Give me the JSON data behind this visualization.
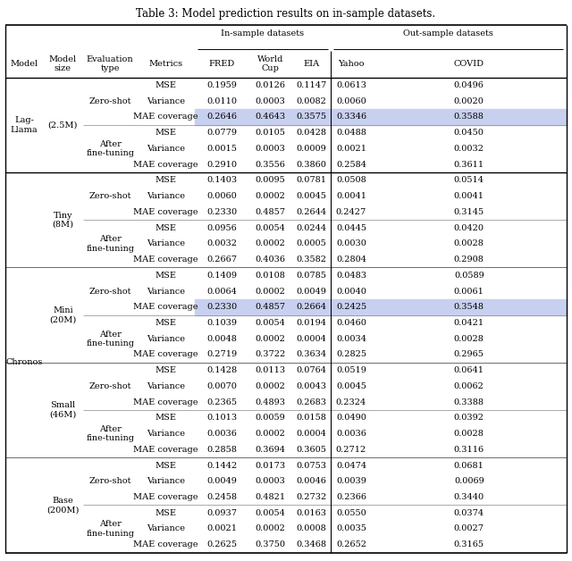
{
  "title": "Table 3: Model prediction results on in-sample datasets.",
  "group_header_in": "In-sample datasets",
  "group_header_out": "Out-sample datasets",
  "col_headers_row2": [
    "FRED",
    "World\nCup",
    "EIA",
    "Yahoo",
    "COVID"
  ],
  "rows": [
    {
      "model": "Lag-\nLlama",
      "size": "(2.5M)",
      "eval": "Zero-shot",
      "metrics": [
        "MSE",
        "Variance",
        "MAE coverage"
      ],
      "values": [
        [
          "0.1959",
          "0.0126",
          "0.1147",
          "0.0613",
          "0.0496"
        ],
        [
          "0.0110",
          "0.0003",
          "0.0082",
          "0.0060",
          "0.0020"
        ],
        [
          "0.2646",
          "0.4643",
          "0.3575",
          "0.3346",
          "0.3588"
        ]
      ],
      "highlight": [
        false,
        false,
        true
      ]
    },
    {
      "model": "",
      "size": "",
      "eval": "After\nfine-tuning",
      "metrics": [
        "MSE",
        "Variance",
        "MAE coverage"
      ],
      "values": [
        [
          "0.0779",
          "0.0105",
          "0.0428",
          "0.0488",
          "0.0450"
        ],
        [
          "0.0015",
          "0.0003",
          "0.0009",
          "0.0021",
          "0.0032"
        ],
        [
          "0.2910",
          "0.3556",
          "0.3860",
          "0.2584",
          "0.3611"
        ]
      ],
      "highlight": [
        false,
        false,
        false
      ]
    },
    {
      "model": "",
      "size": "Tiny\n(8M)",
      "eval": "Zero-shot",
      "metrics": [
        "MSE",
        "Variance",
        "MAE coverage"
      ],
      "values": [
        [
          "0.1403",
          "0.0095",
          "0.0781",
          "0.0508",
          "0.0514"
        ],
        [
          "0.0060",
          "0.0002",
          "0.0045",
          "0.0041",
          "0.0041"
        ],
        [
          "0.2330",
          "0.4857",
          "0.2644",
          "0.2427",
          "0.3145"
        ]
      ],
      "highlight": [
        false,
        false,
        false
      ]
    },
    {
      "model": "",
      "size": "",
      "eval": "After\nfine-tuning",
      "metrics": [
        "MSE",
        "Variance",
        "MAE coverage"
      ],
      "values": [
        [
          "0.0956",
          "0.0054",
          "0.0244",
          "0.0445",
          "0.0420"
        ],
        [
          "0.0032",
          "0.0002",
          "0.0005",
          "0.0030",
          "0.0028"
        ],
        [
          "0.2667",
          "0.4036",
          "0.3582",
          "0.2804",
          "0.2908"
        ]
      ],
      "highlight": [
        false,
        false,
        false
      ]
    },
    {
      "model": "Chronos",
      "size": "Mini\n(20M)",
      "eval": "Zero-shot",
      "metrics": [
        "MSE",
        "Variance",
        "MAE coverage"
      ],
      "values": [
        [
          "0.1409",
          "0.0108",
          "0.0785",
          "0.0483",
          "0.0589"
        ],
        [
          "0.0064",
          "0.0002",
          "0.0049",
          "0.0040",
          "0.0061"
        ],
        [
          "0.2330",
          "0.4857",
          "0.2664",
          "0.2425",
          "0.3548"
        ]
      ],
      "highlight": [
        false,
        false,
        true
      ]
    },
    {
      "model": "",
      "size": "",
      "eval": "After\nfine-tuning",
      "metrics": [
        "MSE",
        "Variance",
        "MAE coverage"
      ],
      "values": [
        [
          "0.1039",
          "0.0054",
          "0.0194",
          "0.0460",
          "0.0421"
        ],
        [
          "0.0048",
          "0.0002",
          "0.0004",
          "0.0034",
          "0.0028"
        ],
        [
          "0.2719",
          "0.3722",
          "0.3634",
          "0.2825",
          "0.2965"
        ]
      ],
      "highlight": [
        false,
        false,
        false
      ]
    },
    {
      "model": "",
      "size": "Small\n(46M)",
      "eval": "Zero-shot",
      "metrics": [
        "MSE",
        "Variance",
        "MAE coverage"
      ],
      "values": [
        [
          "0.1428",
          "0.0113",
          "0.0764",
          "0.0519",
          "0.0641"
        ],
        [
          "0.0070",
          "0.0002",
          "0.0043",
          "0.0045",
          "0.0062"
        ],
        [
          "0.2365",
          "0.4893",
          "0.2683",
          "0.2324",
          "0.3388"
        ]
      ],
      "highlight": [
        false,
        false,
        false
      ]
    },
    {
      "model": "",
      "size": "",
      "eval": "After\nfine-tuning",
      "metrics": [
        "MSE",
        "Variance",
        "MAE coverage"
      ],
      "values": [
        [
          "0.1013",
          "0.0059",
          "0.0158",
          "0.0490",
          "0.0392"
        ],
        [
          "0.0036",
          "0.0002",
          "0.0004",
          "0.0036",
          "0.0028"
        ],
        [
          "0.2858",
          "0.3694",
          "0.3605",
          "0.2712",
          "0.3116"
        ]
      ],
      "highlight": [
        false,
        false,
        false
      ]
    },
    {
      "model": "",
      "size": "Base\n(200M)",
      "eval": "Zero-shot",
      "metrics": [
        "MSE",
        "Variance",
        "MAE coverage"
      ],
      "values": [
        [
          "0.1442",
          "0.0173",
          "0.0753",
          "0.0474",
          "0.0681"
        ],
        [
          "0.0049",
          "0.0003",
          "0.0046",
          "0.0039",
          "0.0069"
        ],
        [
          "0.2458",
          "0.4821",
          "0.2732",
          "0.2366",
          "0.3440"
        ]
      ],
      "highlight": [
        false,
        false,
        false
      ]
    },
    {
      "model": "",
      "size": "",
      "eval": "After\nfine-tuning",
      "metrics": [
        "MSE",
        "Variance",
        "MAE coverage"
      ],
      "values": [
        [
          "0.0937",
          "0.0054",
          "0.0163",
          "0.0550",
          "0.0374"
        ],
        [
          "0.0021",
          "0.0002",
          "0.0008",
          "0.0035",
          "0.0027"
        ],
        [
          "0.2625",
          "0.3750",
          "0.3468",
          "0.2652",
          "0.3165"
        ]
      ],
      "highlight": [
        false,
        false,
        false
      ]
    }
  ],
  "highlight_color": "#c8d0f0",
  "bg_color": "#ffffff",
  "font_size": 7.0,
  "title_font_size": 8.5
}
